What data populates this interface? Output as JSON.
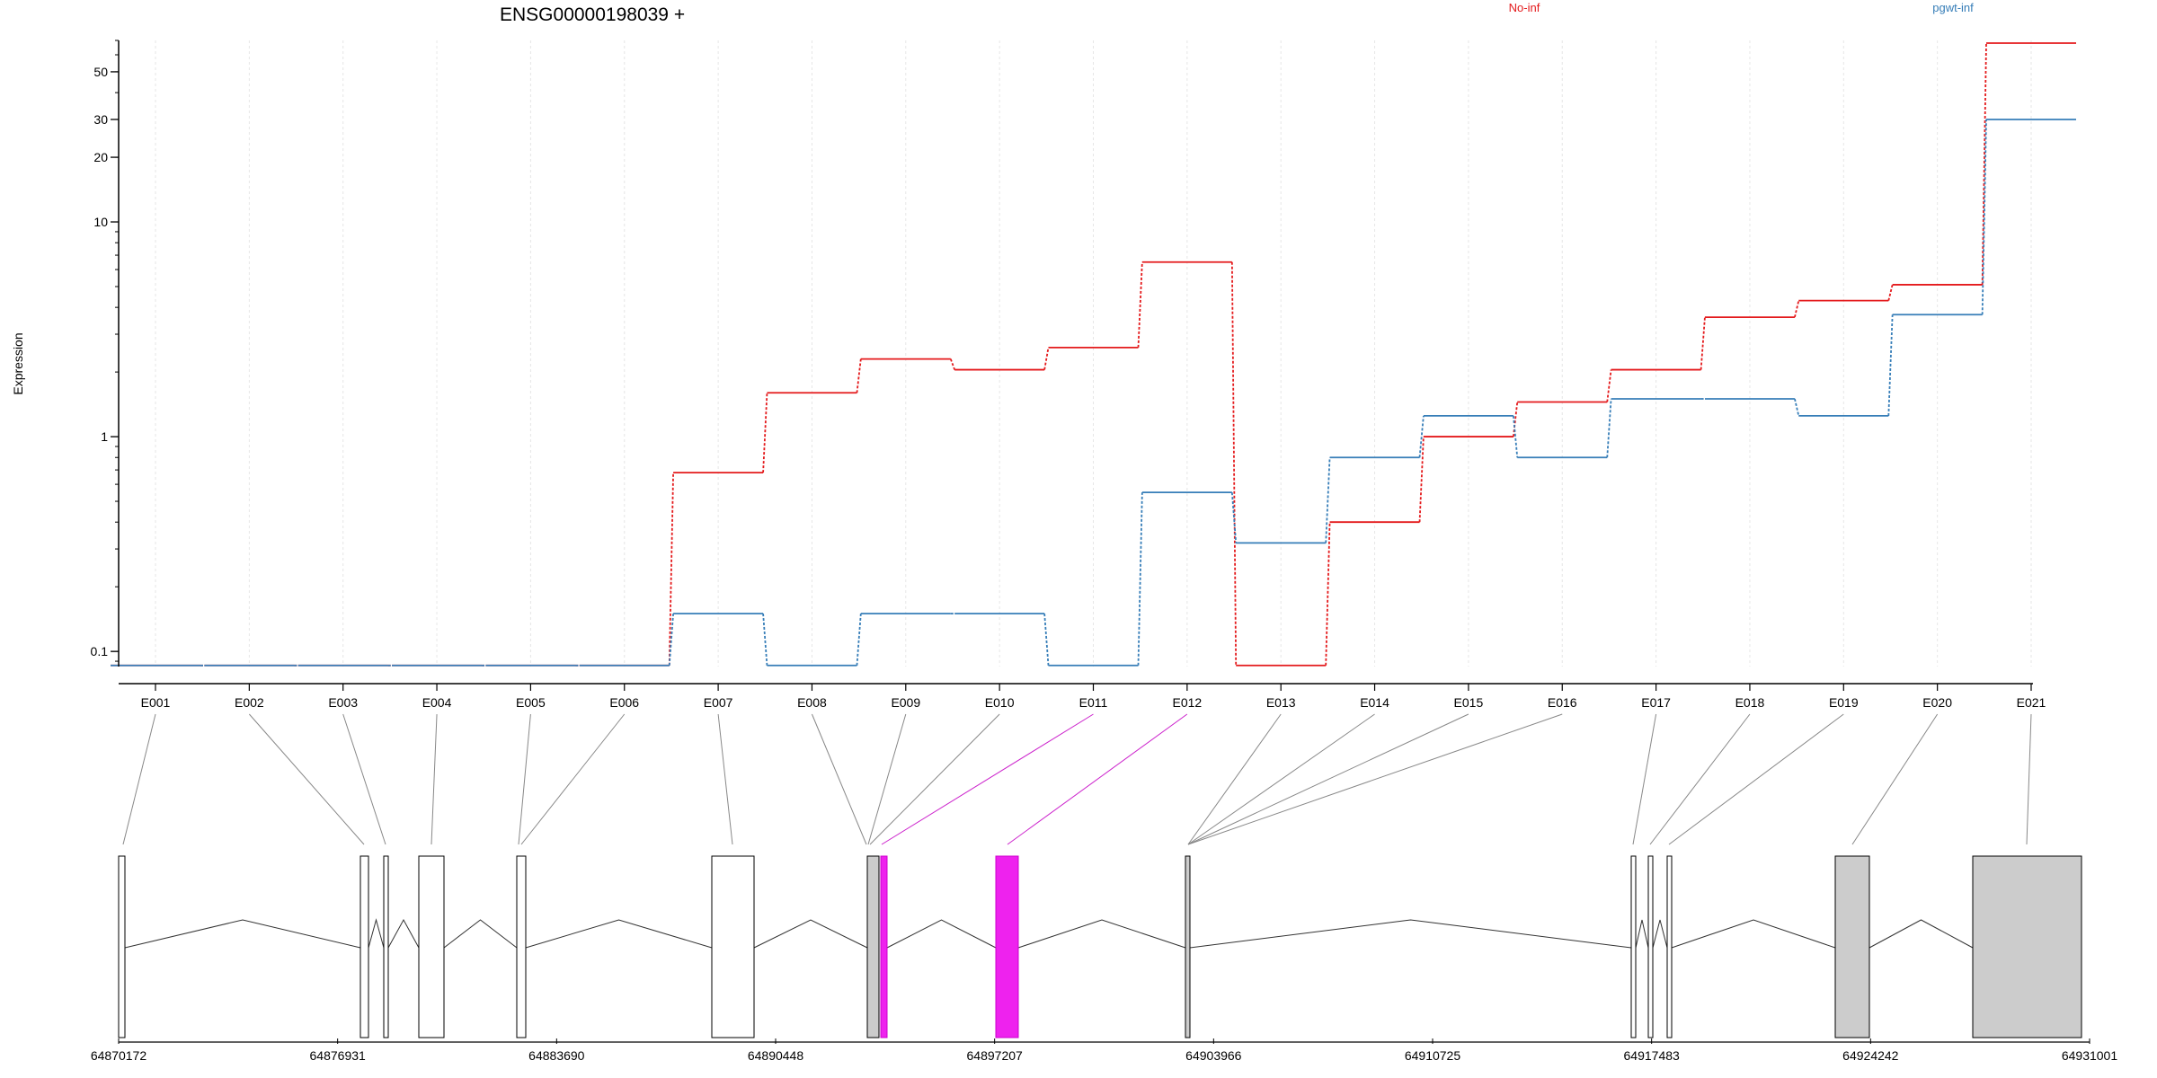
{
  "chart_data": {
    "type": "line",
    "title": "ENSG00000198039 +",
    "ylabel": "Expression",
    "yscale": "log",
    "ylim": [
      0.085,
      70
    ],
    "yticks": [
      0.1,
      1,
      10,
      20,
      30,
      50
    ],
    "ytick_labels": [
      "0.1",
      "1",
      "10",
      "20",
      "30",
      "50"
    ],
    "categories": [
      "E001",
      "E002",
      "E003",
      "E004",
      "E005",
      "E006",
      "E007",
      "E008",
      "E009",
      "E010",
      "E011",
      "E012",
      "E013",
      "E014",
      "E015",
      "E016",
      "E017",
      "E018",
      "E019",
      "E020",
      "E021"
    ],
    "series": [
      {
        "name": "No-inf",
        "color": "#e41a1c",
        "values": [
          0.086,
          0.086,
          0.086,
          0.086,
          0.086,
          0.086,
          0.68,
          1.6,
          2.3,
          2.05,
          2.6,
          6.5,
          0.086,
          0.4,
          1.0,
          1.45,
          2.05,
          3.6,
          4.3,
          5.1,
          68
        ]
      },
      {
        "name": "pgwt-inf",
        "color": "#377eb8",
        "values": [
          0.086,
          0.086,
          0.086,
          0.086,
          0.086,
          0.086,
          0.15,
          0.086,
          0.15,
          0.15,
          0.086,
          0.55,
          0.32,
          0.8,
          1.25,
          0.8,
          1.5,
          1.5,
          1.25,
          3.7,
          30
        ]
      }
    ],
    "gene_model": {
      "genomic_ticks": [
        "64870172",
        "64876931",
        "64883690",
        "64890448",
        "64897207",
        "64903966",
        "64910725",
        "64917483",
        "64924242",
        "64931001"
      ],
      "significant_exons": [
        "E011",
        "E012"
      ],
      "colors": {
        "significant": "#ee22ee",
        "utr": "#cccccc",
        "exon": "#ffffff"
      }
    },
    "legend_placement": "top"
  }
}
